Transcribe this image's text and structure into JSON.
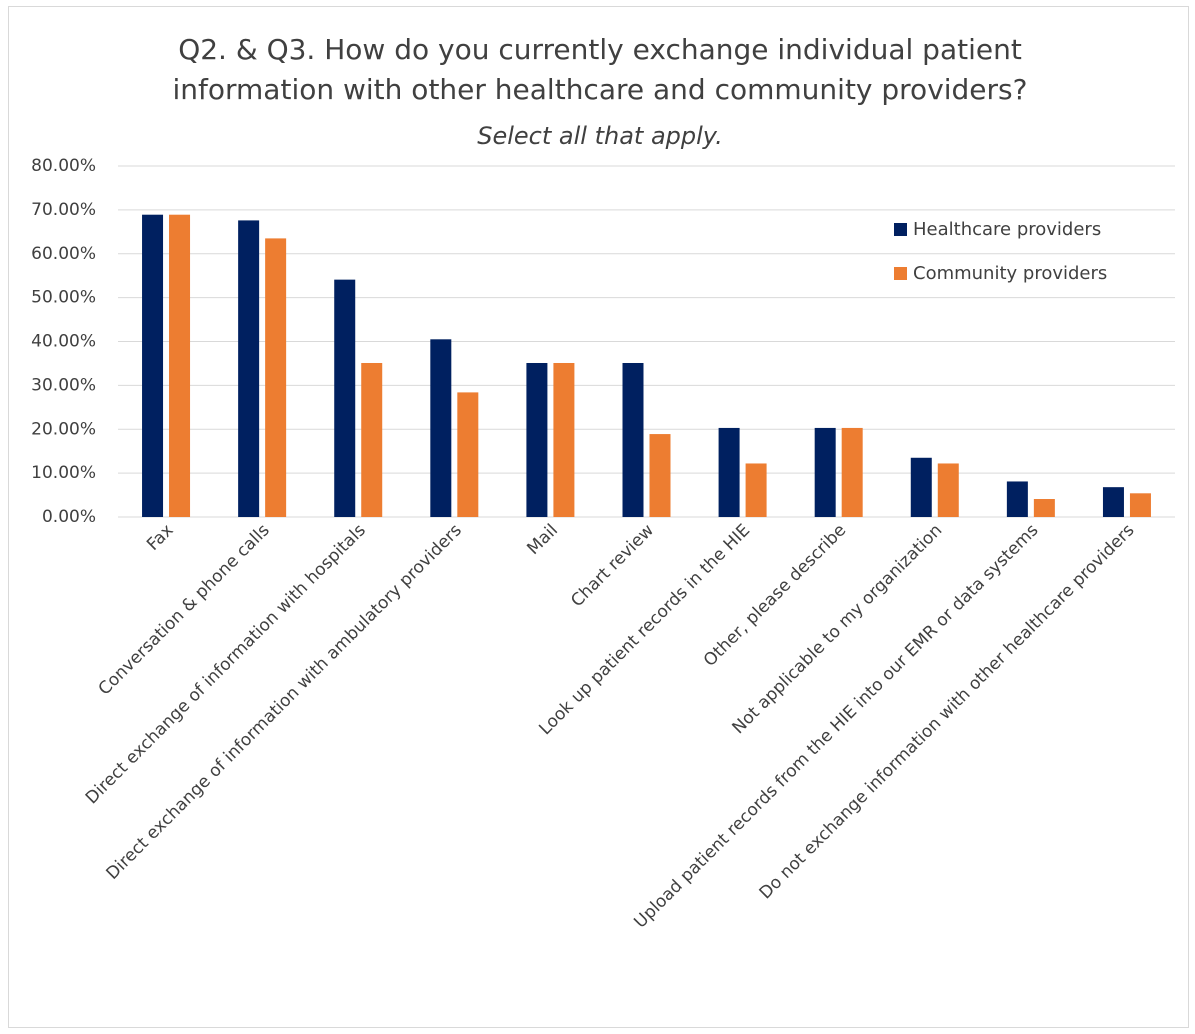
{
  "chart_data": {
    "type": "bar",
    "title": "Q2. & Q3. How do you currently exchange individual patient information with other healthcare and community providers?",
    "subtitle": "Select all that apply.",
    "categories": [
      "Fax",
      "Conversation & phone calls",
      "Direct exchange of information with hospitals",
      "Direct exchange of information with ambulatory providers",
      "Mail",
      "Chart review",
      "Look up patient records in the HIE",
      "Other, please describe",
      "Not applicable to my organization",
      "Upload patient records from the HIE into our EMR or data systems",
      "Do not exchange information with other healthcare providers"
    ],
    "series": [
      {
        "name": "Healthcare providers",
        "color": "#002060",
        "values": [
          68.9,
          67.6,
          54.1,
          40.5,
          35.1,
          35.1,
          20.3,
          20.3,
          13.5,
          8.1,
          6.8
        ]
      },
      {
        "name": "Community providers",
        "color": "#ed7d31",
        "values": [
          68.9,
          63.5,
          35.1,
          28.4,
          35.1,
          18.9,
          12.2,
          20.3,
          12.2,
          4.1,
          5.4
        ]
      }
    ],
    "ylim": [
      0,
      80
    ],
    "yticks": [
      {
        "value": 0,
        "label": "0.00%"
      },
      {
        "value": 10,
        "label": "10.00%"
      },
      {
        "value": 20,
        "label": "20.00%"
      },
      {
        "value": 30,
        "label": "30.00%"
      },
      {
        "value": 40,
        "label": "40.00%"
      },
      {
        "value": 50,
        "label": "50.00%"
      },
      {
        "value": 60,
        "label": "60.00%"
      },
      {
        "value": 70,
        "label": "70.00%"
      },
      {
        "value": 80,
        "label": "80.00%"
      }
    ],
    "grid": true,
    "legend": "top-right"
  }
}
